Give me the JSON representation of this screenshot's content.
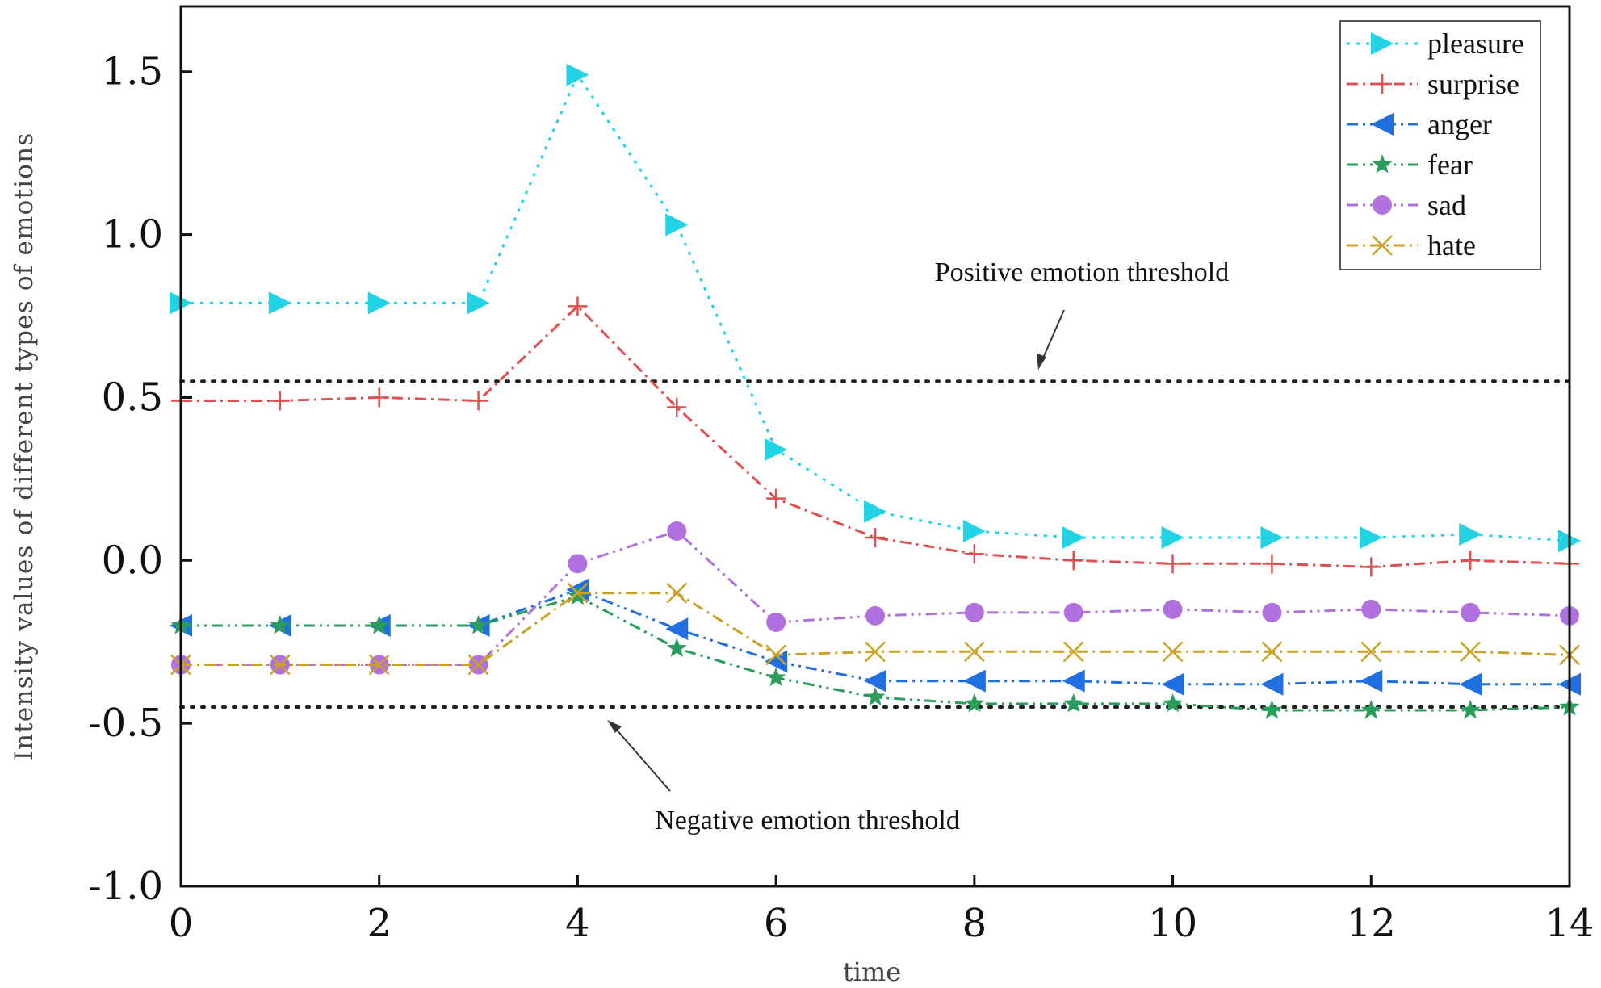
{
  "chart_data": {
    "type": "line",
    "title": "",
    "xlabel": "time",
    "ylabel": "Intensity values of different types of emotions",
    "xlim": [
      0,
      14
    ],
    "ylim": [
      -1.0,
      1.7
    ],
    "x_ticks": [
      0,
      2,
      4,
      6,
      8,
      10,
      12,
      14
    ],
    "x_tick_labels": [
      "0",
      "2",
      "4",
      "6",
      "8",
      "10",
      "12",
      "14"
    ],
    "y_ticks": [
      -1.0,
      -0.5,
      0.0,
      0.5,
      1.0,
      1.5
    ],
    "y_tick_labels": [
      "-1.0",
      "-0.5",
      "0.0",
      "0.5",
      "1.0",
      "1.5"
    ],
    "x": [
      0,
      1,
      2,
      3,
      4,
      5,
      6,
      7,
      8,
      9,
      10,
      11,
      12,
      13,
      14
    ],
    "legend_position": "top-right",
    "series": [
      {
        "name": "pleasure",
        "color": "#22d3e6",
        "marker": "triangle-right",
        "dash": "4 8",
        "values": [
          0.79,
          0.79,
          0.79,
          0.79,
          1.49,
          1.03,
          0.34,
          0.15,
          0.09,
          0.07,
          0.07,
          0.07,
          0.07,
          0.08,
          0.06
        ]
      },
      {
        "name": "surprise",
        "color": "#e05050",
        "marker": "plus",
        "dash": "14 6 3 6",
        "values": [
          0.49,
          0.49,
          0.5,
          0.49,
          0.78,
          0.47,
          0.19,
          0.07,
          0.02,
          0.0,
          -0.01,
          -0.01,
          -0.02,
          0.0,
          -0.01
        ]
      },
      {
        "name": "anger",
        "color": "#1f6fe0",
        "marker": "triangle-left",
        "dash": "14 6 3 6 3 6",
        "values": [
          -0.2,
          -0.2,
          -0.2,
          -0.2,
          -0.09,
          -0.21,
          -0.31,
          -0.37,
          -0.37,
          -0.37,
          -0.38,
          -0.38,
          -0.37,
          -0.38,
          -0.38
        ]
      },
      {
        "name": "fear",
        "color": "#2a9d5c",
        "marker": "star",
        "dash": "14 6 3 6 3 6",
        "values": [
          -0.2,
          -0.2,
          -0.2,
          -0.2,
          -0.11,
          -0.27,
          -0.36,
          -0.42,
          -0.44,
          -0.44,
          -0.44,
          -0.46,
          -0.46,
          -0.46,
          -0.45
        ]
      },
      {
        "name": "sad",
        "color": "#b070e0",
        "marker": "circle",
        "dash": "14 6 3 6 3 6",
        "values": [
          -0.32,
          -0.32,
          -0.32,
          -0.32,
          -0.01,
          0.09,
          -0.19,
          -0.17,
          -0.16,
          -0.16,
          -0.15,
          -0.16,
          -0.15,
          -0.16,
          -0.17
        ]
      },
      {
        "name": "hate",
        "color": "#c9a227",
        "marker": "x",
        "dash": "14 6 3 6",
        "values": [
          -0.32,
          -0.32,
          -0.32,
          -0.32,
          -0.1,
          -0.1,
          -0.29,
          -0.28,
          -0.28,
          -0.28,
          -0.28,
          -0.28,
          -0.28,
          -0.28,
          -0.29
        ]
      }
    ],
    "thresholds": [
      {
        "name": "positive",
        "value": 0.55,
        "label": "Positive emotion threshold"
      },
      {
        "name": "negative",
        "value": -0.45,
        "label": "Negative emotion threshold"
      }
    ]
  }
}
